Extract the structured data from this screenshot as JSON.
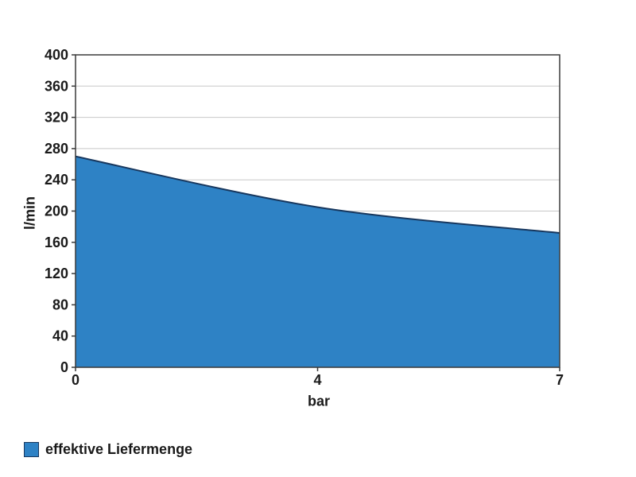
{
  "chart_data": {
    "type": "area",
    "title": "",
    "categories": [
      "0",
      "4",
      "7"
    ],
    "series": [
      {
        "name": "effektive Liefermenge",
        "values": [
          270,
          205,
          172
        ]
      }
    ],
    "xlabel": "bar",
    "ylabel": "l/min",
    "ylim": [
      0,
      400
    ],
    "yticks": [
      0,
      40,
      80,
      120,
      160,
      200,
      240,
      280,
      320,
      360,
      400
    ],
    "grid": true,
    "smoothed_line": true,
    "legend_position": "bottom-left",
    "colors": {
      "area_fill": "#2e82c5",
      "area_stroke": "#17375e",
      "gridline": "#c8c8c8",
      "axis": "#3a3a3a",
      "text": "#1a1a1a"
    }
  }
}
